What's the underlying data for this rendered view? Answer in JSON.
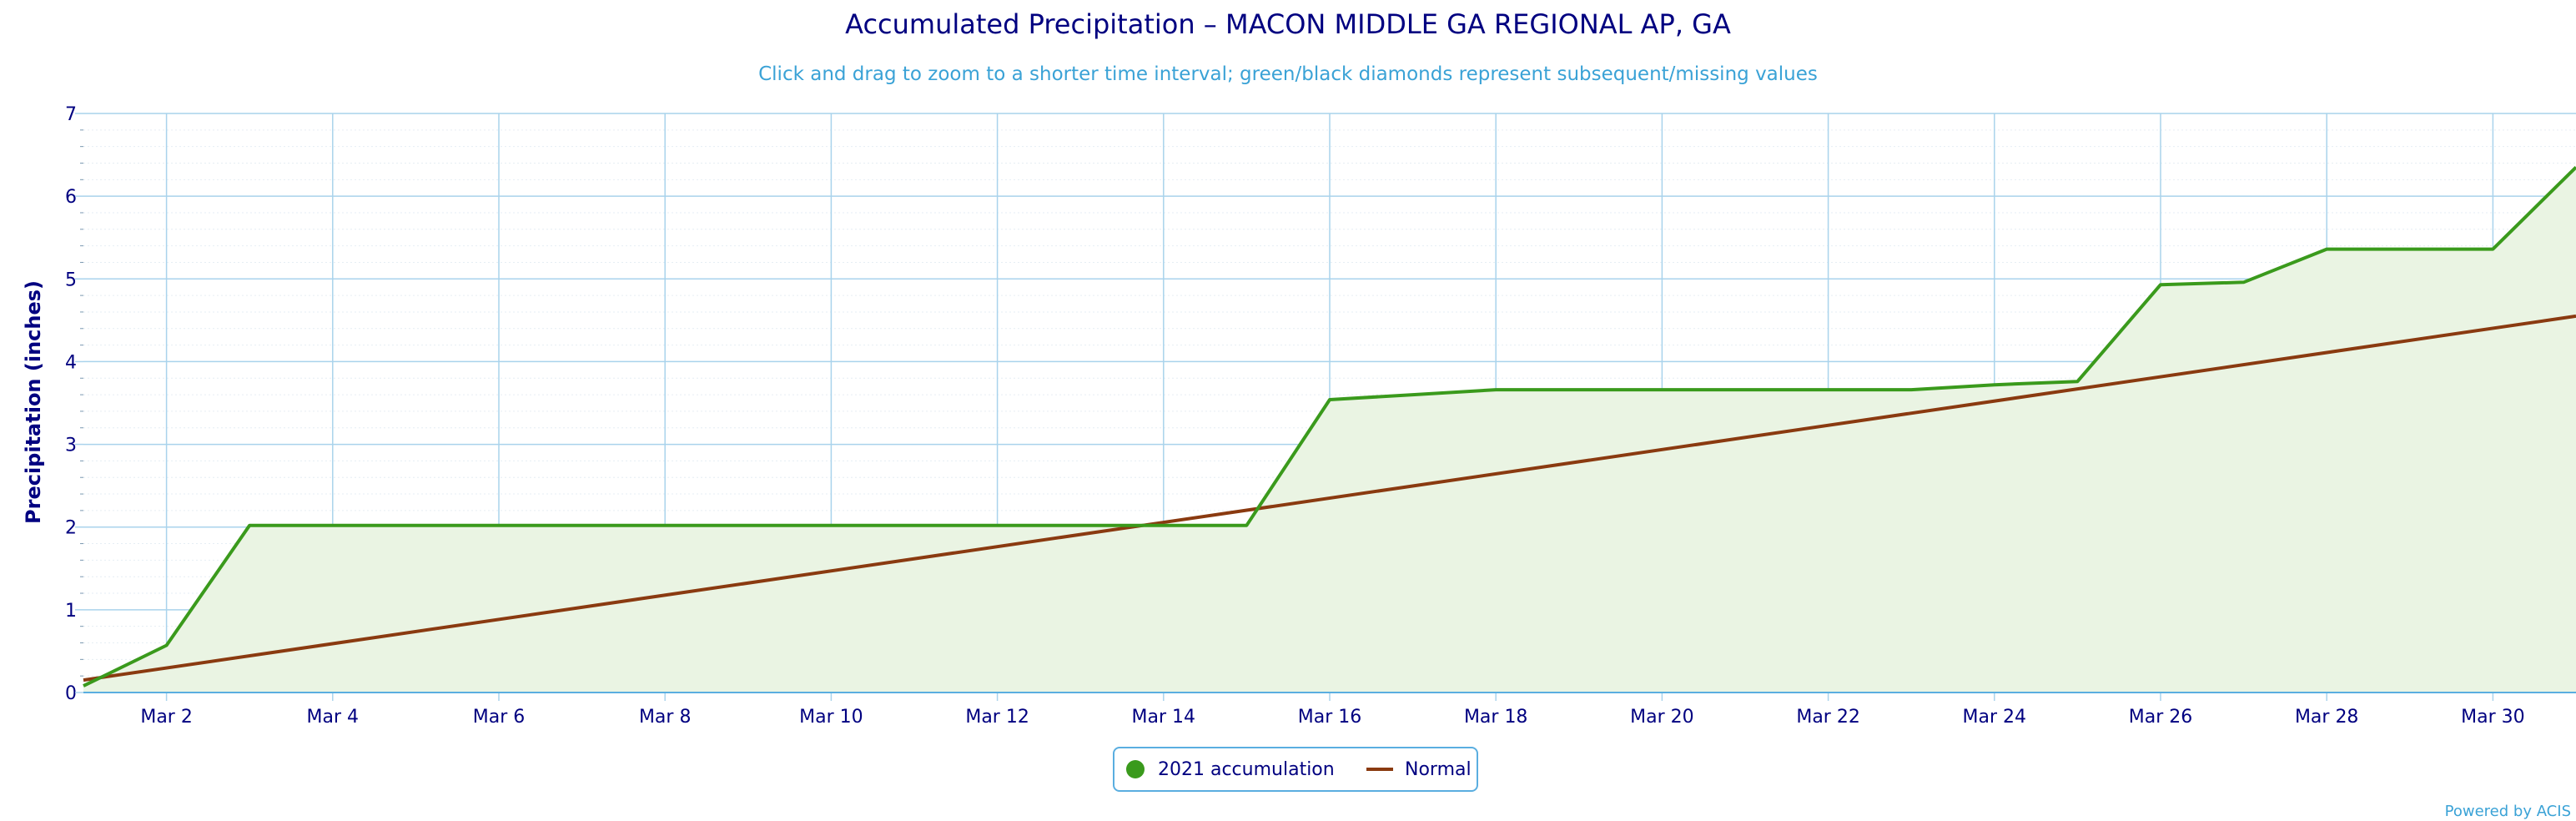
{
  "chart_data": {
    "type": "line",
    "title": "Accumulated Precipitation – MACON MIDDLE GA REGIONAL AP, GA",
    "subtitle": "Click and drag to zoom to a shorter time interval; green/black diamonds represent subsequent/missing values",
    "ylabel": "Precipitation (inches)",
    "xlabel": "",
    "ylim": [
      0,
      7
    ],
    "yticks": [
      0,
      1,
      2,
      3,
      4,
      5,
      6,
      7
    ],
    "xlim": [
      1,
      31
    ],
    "xticks": [
      {
        "day": 2,
        "label": "Mar 2"
      },
      {
        "day": 4,
        "label": "Mar 4"
      },
      {
        "day": 6,
        "label": "Mar 6"
      },
      {
        "day": 8,
        "label": "Mar 8"
      },
      {
        "day": 10,
        "label": "Mar 10"
      },
      {
        "day": 12,
        "label": "Mar 12"
      },
      {
        "day": 14,
        "label": "Mar 14"
      },
      {
        "day": 16,
        "label": "Mar 16"
      },
      {
        "day": 18,
        "label": "Mar 18"
      },
      {
        "day": 20,
        "label": "Mar 20"
      },
      {
        "day": 22,
        "label": "Mar 22"
      },
      {
        "day": 24,
        "label": "Mar 24"
      },
      {
        "day": 26,
        "label": "Mar 26"
      },
      {
        "day": 28,
        "label": "Mar 28"
      },
      {
        "day": 30,
        "label": "Mar 30"
      }
    ],
    "grid": true,
    "legend_position": "bottom-center",
    "series": [
      {
        "name": "2021 accumulation",
        "color": "#3a9a1c",
        "area_fill": "#eaf4e3",
        "x": [
          1,
          2,
          3,
          4,
          5,
          6,
          7,
          8,
          9,
          10,
          11,
          12,
          13,
          14,
          15,
          16,
          17,
          18,
          19,
          20,
          21,
          22,
          23,
          24,
          25,
          26,
          27,
          28,
          29,
          30,
          31
        ],
        "values": [
          0.08,
          0.57,
          2.02,
          2.02,
          2.02,
          2.02,
          2.02,
          2.02,
          2.02,
          2.02,
          2.02,
          2.02,
          2.02,
          2.02,
          2.02,
          3.54,
          3.6,
          3.66,
          3.66,
          3.66,
          3.66,
          3.66,
          3.66,
          3.72,
          3.76,
          4.93,
          4.96,
          5.36,
          5.36,
          5.36,
          6.35
        ]
      },
      {
        "name": "Normal",
        "color": "#8a3a10",
        "x": [
          1,
          31
        ],
        "values": [
          0.15,
          4.55
        ]
      }
    ]
  },
  "legend": {
    "item1": "2021 accumulation",
    "item2": "Normal"
  },
  "credit": "Powered by ACIS"
}
